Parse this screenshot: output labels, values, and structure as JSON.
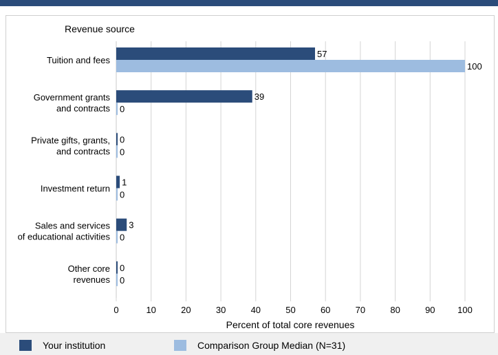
{
  "chart_data": {
    "type": "bar",
    "orientation": "horizontal",
    "ytitle": "Revenue source",
    "xlabel": "Percent of total core revenues",
    "xlim": [
      0,
      100
    ],
    "xticks": [
      0,
      10,
      20,
      30,
      40,
      50,
      60,
      70,
      80,
      90,
      100
    ],
    "grid": true,
    "legend_position": "bottom",
    "categories": [
      [
        "Tuition and fees"
      ],
      [
        "Government grants",
        "and contracts"
      ],
      [
        "Private gifts, grants,",
        "and contracts"
      ],
      [
        "Investment return"
      ],
      [
        "Sales and services",
        "of educational activities"
      ],
      [
        "Other core",
        "revenues"
      ]
    ],
    "series": [
      {
        "name": "Your institution",
        "color": "#2b4c7a",
        "values": [
          57,
          39,
          0,
          1,
          3,
          0
        ]
      },
      {
        "name": "Comparison Group Median (N=31)",
        "color": "#9dbce0",
        "values": [
          100,
          0,
          0,
          0,
          0,
          0
        ]
      }
    ]
  }
}
